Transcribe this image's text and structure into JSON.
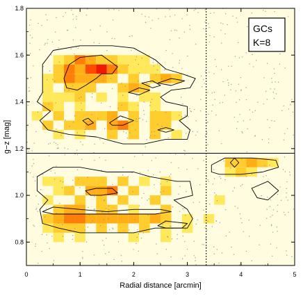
{
  "chart_data": {
    "type": "heatmap",
    "xlabel": "Radial distance [arcmin]",
    "ylabel": "g−z [mag]",
    "xlim": [
      0,
      5
    ],
    "ylim": [
      0.7,
      1.8
    ],
    "x_ticks": [
      0,
      1,
      2,
      3,
      4,
      5
    ],
    "y_ticks": [
      0.8,
      1.0,
      1.2,
      1.4,
      1.6,
      1.8
    ],
    "y_tick_labels": [
      "0.8",
      "1.0",
      "1.2",
      "1.4",
      "1.6",
      "1.8"
    ],
    "legend_box": {
      "lines": [
        "GCs",
        "K=8"
      ],
      "placement": "top-right"
    },
    "reference_lines": [
      {
        "orientation": "horizontal",
        "value": 1.18,
        "style": "solid"
      },
      {
        "orientation": "vertical",
        "value": 3.35,
        "style": "dashed"
      }
    ],
    "density_scale": {
      "0": "#fffce0",
      "1": "#fff59a",
      "2": "#ffe85a",
      "3": "#ffce2e",
      "4": "#ffae16",
      "5": "#ff7e08",
      "6": "#ff4a00",
      "7": "#f01a00"
    },
    "density_bins": {
      "x_bin_width": 0.2,
      "y_bin_width": 0.04,
      "cells": [
        [
          0.6,
          1.58,
          2
        ],
        [
          0.8,
          1.58,
          3
        ],
        [
          1.0,
          1.58,
          5
        ],
        [
          1.2,
          1.58,
          4
        ],
        [
          1.4,
          1.58,
          3
        ],
        [
          1.6,
          1.58,
          3
        ],
        [
          1.8,
          1.58,
          2
        ],
        [
          2.0,
          1.58,
          2
        ],
        [
          2.2,
          1.58,
          2
        ],
        [
          0.6,
          1.54,
          3
        ],
        [
          0.8,
          1.54,
          5
        ],
        [
          1.0,
          1.54,
          4
        ],
        [
          1.2,
          1.54,
          6
        ],
        [
          1.4,
          1.54,
          7
        ],
        [
          1.6,
          1.54,
          5
        ],
        [
          1.8,
          1.54,
          3
        ],
        [
          2.0,
          1.54,
          2
        ],
        [
          2.2,
          1.54,
          2
        ],
        [
          2.4,
          1.54,
          2
        ],
        [
          0.4,
          1.5,
          2
        ],
        [
          0.6,
          1.5,
          3
        ],
        [
          0.8,
          1.5,
          5
        ],
        [
          1.0,
          1.5,
          4
        ],
        [
          1.2,
          1.5,
          4
        ],
        [
          1.4,
          1.5,
          4
        ],
        [
          1.6,
          1.5,
          3
        ],
        [
          2.0,
          1.5,
          3
        ],
        [
          2.4,
          1.5,
          3
        ],
        [
          2.6,
          1.5,
          4
        ],
        [
          2.8,
          1.5,
          3
        ],
        [
          0.4,
          1.46,
          2
        ],
        [
          0.8,
          1.46,
          3
        ],
        [
          1.0,
          1.46,
          3
        ],
        [
          1.2,
          1.46,
          3
        ],
        [
          1.8,
          1.46,
          3
        ],
        [
          2.0,
          1.46,
          4
        ],
        [
          2.2,
          1.46,
          3
        ],
        [
          0.4,
          1.42,
          2
        ],
        [
          0.6,
          1.42,
          2
        ],
        [
          0.8,
          1.42,
          2
        ],
        [
          1.0,
          1.42,
          3
        ],
        [
          1.4,
          1.42,
          2
        ],
        [
          1.8,
          1.42,
          2
        ],
        [
          2.2,
          1.42,
          2
        ],
        [
          2.4,
          1.42,
          2
        ],
        [
          0.4,
          1.38,
          3
        ],
        [
          0.6,
          1.38,
          2
        ],
        [
          1.0,
          1.38,
          2
        ],
        [
          1.8,
          1.38,
          3
        ],
        [
          2.0,
          1.38,
          2
        ],
        [
          2.4,
          1.38,
          2
        ],
        [
          0.2,
          1.34,
          2
        ],
        [
          0.6,
          1.34,
          3
        ],
        [
          1.0,
          1.34,
          3
        ],
        [
          1.2,
          1.34,
          3
        ],
        [
          1.4,
          1.34,
          3
        ],
        [
          1.6,
          1.34,
          4
        ],
        [
          2.0,
          1.34,
          3
        ],
        [
          2.4,
          1.34,
          3
        ],
        [
          2.6,
          1.34,
          3
        ],
        [
          2.8,
          1.34,
          2
        ],
        [
          0.4,
          1.3,
          3
        ],
        [
          0.8,
          1.3,
          3
        ],
        [
          1.0,
          1.3,
          3
        ],
        [
          1.2,
          1.3,
          4
        ],
        [
          1.6,
          1.3,
          4
        ],
        [
          1.8,
          1.3,
          5
        ],
        [
          2.0,
          1.3,
          3
        ],
        [
          2.4,
          1.3,
          3
        ],
        [
          2.6,
          1.3,
          3
        ],
        [
          0.6,
          1.26,
          2
        ],
        [
          1.0,
          1.26,
          2
        ],
        [
          1.6,
          1.26,
          3
        ],
        [
          2.0,
          1.26,
          3
        ],
        [
          2.4,
          1.26,
          3
        ],
        [
          2.8,
          1.26,
          2
        ],
        [
          3.8,
          1.14,
          3
        ],
        [
          4.0,
          1.14,
          3
        ],
        [
          4.2,
          1.14,
          4
        ],
        [
          4.4,
          1.14,
          3
        ],
        [
          4.6,
          1.14,
          2
        ],
        [
          3.8,
          1.1,
          2
        ],
        [
          4.0,
          1.1,
          3
        ],
        [
          4.2,
          1.1,
          2
        ],
        [
          0.4,
          1.06,
          2
        ],
        [
          0.6,
          1.06,
          2
        ],
        [
          1.0,
          1.06,
          3
        ],
        [
          1.2,
          1.06,
          3
        ],
        [
          1.4,
          1.06,
          3
        ],
        [
          1.8,
          1.06,
          3
        ],
        [
          2.2,
          1.06,
          2
        ],
        [
          2.6,
          1.06,
          2
        ],
        [
          0.6,
          1.02,
          2
        ],
        [
          0.8,
          1.02,
          3
        ],
        [
          1.2,
          1.02,
          4
        ],
        [
          1.4,
          1.02,
          4
        ],
        [
          1.6,
          1.02,
          5
        ],
        [
          2.0,
          1.02,
          3
        ],
        [
          2.6,
          1.02,
          3
        ],
        [
          0.4,
          0.98,
          2
        ],
        [
          1.0,
          0.98,
          3
        ],
        [
          1.4,
          0.98,
          3
        ],
        [
          1.8,
          0.98,
          3
        ],
        [
          2.4,
          0.98,
          3
        ],
        [
          3.6,
          0.98,
          2
        ],
        [
          0.6,
          0.94,
          3
        ],
        [
          0.8,
          0.94,
          4
        ],
        [
          1.0,
          0.94,
          4
        ],
        [
          1.4,
          0.94,
          3
        ],
        [
          1.6,
          0.94,
          3
        ],
        [
          2.0,
          0.94,
          2
        ],
        [
          2.6,
          0.94,
          3
        ],
        [
          0.4,
          0.9,
          3
        ],
        [
          0.6,
          0.9,
          4
        ],
        [
          0.8,
          0.9,
          5
        ],
        [
          1.0,
          0.9,
          5
        ],
        [
          1.2,
          0.9,
          4
        ],
        [
          1.4,
          0.9,
          4
        ],
        [
          1.6,
          0.9,
          4
        ],
        [
          1.8,
          0.9,
          4
        ],
        [
          2.0,
          0.9,
          4
        ],
        [
          2.2,
          0.9,
          3
        ],
        [
          2.4,
          0.9,
          4
        ],
        [
          2.6,
          0.9,
          3
        ],
        [
          3.0,
          0.9,
          2
        ],
        [
          3.4,
          0.9,
          2
        ],
        [
          0.4,
          0.86,
          2
        ],
        [
          0.6,
          0.86,
          3
        ],
        [
          0.8,
          0.86,
          3
        ],
        [
          1.0,
          0.86,
          3
        ],
        [
          1.4,
          0.86,
          3
        ],
        [
          1.8,
          0.86,
          3
        ],
        [
          2.2,
          0.86,
          3
        ],
        [
          2.6,
          0.86,
          2
        ],
        [
          3.0,
          0.86,
          2
        ],
        [
          0.6,
          0.82,
          2
        ],
        [
          1.0,
          0.82,
          2
        ],
        [
          2.0,
          0.82,
          2
        ],
        [
          2.6,
          0.82,
          2
        ]
      ]
    },
    "contours": [
      {
        "level": "outer",
        "points": [
          [
            0.3,
            1.44
          ],
          [
            0.3,
            1.56
          ],
          [
            0.5,
            1.62
          ],
          [
            1.0,
            1.64
          ],
          [
            1.6,
            1.64
          ],
          [
            2.0,
            1.63
          ],
          [
            2.4,
            1.58
          ],
          [
            2.6,
            1.54
          ],
          [
            2.9,
            1.52
          ],
          [
            3.15,
            1.5
          ],
          [
            3.05,
            1.46
          ],
          [
            2.7,
            1.45
          ],
          [
            2.5,
            1.42
          ],
          [
            2.6,
            1.4
          ],
          [
            3.0,
            1.38
          ],
          [
            3.0,
            1.34
          ],
          [
            2.85,
            1.32
          ],
          [
            3.05,
            1.28
          ],
          [
            3.0,
            1.24
          ],
          [
            2.6,
            1.24
          ],
          [
            2.2,
            1.22
          ],
          [
            1.8,
            1.22
          ],
          [
            1.3,
            1.25
          ],
          [
            0.8,
            1.26
          ],
          [
            0.4,
            1.28
          ],
          [
            0.25,
            1.32
          ],
          [
            0.45,
            1.36
          ],
          [
            0.2,
            1.4
          ]
        ],
        "closed": true
      },
      {
        "level": "outer",
        "points": [
          [
            0.2,
            1.08
          ],
          [
            0.5,
            1.12
          ],
          [
            1.0,
            1.12
          ],
          [
            1.5,
            1.1
          ],
          [
            2.0,
            1.1
          ],
          [
            2.3,
            1.08
          ],
          [
            2.8,
            1.06
          ],
          [
            3.05,
            1.06
          ],
          [
            3.1,
            1.0
          ],
          [
            2.75,
            0.98
          ],
          [
            3.0,
            0.94
          ],
          [
            3.1,
            0.9
          ],
          [
            3.0,
            0.86
          ],
          [
            2.7,
            0.86
          ],
          [
            2.4,
            0.86
          ],
          [
            2.0,
            0.84
          ],
          [
            1.5,
            0.84
          ],
          [
            1.0,
            0.84
          ],
          [
            0.6,
            0.86
          ],
          [
            0.3,
            0.88
          ],
          [
            0.25,
            0.94
          ],
          [
            0.4,
            0.98
          ],
          [
            0.2,
            1.02
          ]
        ],
        "closed": true
      },
      {
        "level": "outer",
        "points": [
          [
            3.45,
            1.13
          ],
          [
            3.7,
            1.16
          ],
          [
            4.2,
            1.16
          ],
          [
            4.65,
            1.15
          ],
          [
            4.7,
            1.12
          ],
          [
            4.4,
            1.1
          ],
          [
            4.0,
            1.09
          ],
          [
            3.6,
            1.09
          ],
          [
            3.45,
            1.1
          ]
        ],
        "closed": true
      },
      {
        "level": "outer",
        "points": [
          [
            4.2,
            1.03
          ],
          [
            4.5,
            1.06
          ],
          [
            4.7,
            1.02
          ],
          [
            4.5,
            0.98
          ],
          [
            4.3,
            0.99
          ]
        ],
        "closed": true
      },
      {
        "level": "outer",
        "points": [
          [
            2.45,
            0.87
          ],
          [
            2.6,
            0.89
          ],
          [
            3.0,
            0.88
          ],
          [
            2.9,
            0.86
          ],
          [
            2.6,
            0.86
          ]
        ],
        "closed": true
      },
      {
        "level": "outer",
        "points": [
          [
            2.15,
            1.48
          ],
          [
            2.35,
            1.49
          ],
          [
            2.5,
            1.47
          ],
          [
            2.35,
            1.46
          ]
        ],
        "closed": true
      },
      {
        "level": "inner",
        "points": [
          [
            0.7,
            1.5
          ],
          [
            0.8,
            1.56
          ],
          [
            1.0,
            1.59
          ],
          [
            1.4,
            1.6
          ],
          [
            1.7,
            1.55
          ],
          [
            1.6,
            1.52
          ],
          [
            1.4,
            1.52
          ],
          [
            1.3,
            1.5
          ],
          [
            1.1,
            1.47
          ],
          [
            0.95,
            1.45
          ],
          [
            0.75,
            1.46
          ]
        ],
        "closed": true
      },
      {
        "level": "inner",
        "points": [
          [
            1.9,
            1.44
          ],
          [
            2.1,
            1.46
          ],
          [
            2.3,
            1.45
          ],
          [
            2.1,
            1.43
          ]
        ],
        "closed": true
      },
      {
        "level": "inner",
        "points": [
          [
            2.45,
            1.48
          ],
          [
            2.7,
            1.5
          ],
          [
            2.95,
            1.49
          ],
          [
            2.7,
            1.47
          ]
        ],
        "closed": true
      },
      {
        "level": "inner",
        "points": [
          [
            1.05,
            1.32
          ],
          [
            1.15,
            1.33
          ],
          [
            1.25,
            1.31
          ],
          [
            1.15,
            1.3
          ]
        ],
        "closed": true
      },
      {
        "level": "inner",
        "points": [
          [
            1.55,
            1.31
          ],
          [
            1.75,
            1.34
          ],
          [
            2.0,
            1.32
          ],
          [
            1.8,
            1.3
          ],
          [
            1.6,
            1.3
          ]
        ],
        "closed": true
      },
      {
        "level": "inner",
        "points": [
          [
            2.45,
            1.28
          ],
          [
            2.6,
            1.29
          ],
          [
            2.75,
            1.28
          ],
          [
            2.6,
            1.27
          ]
        ],
        "closed": true
      },
      {
        "level": "inner",
        "points": [
          [
            3.8,
            1.14
          ],
          [
            3.88,
            1.16
          ],
          [
            3.96,
            1.14
          ],
          [
            3.88,
            1.12
          ]
        ],
        "closed": true
      },
      {
        "level": "inner",
        "points": [
          [
            1.1,
            1.02
          ],
          [
            1.3,
            1.03
          ],
          [
            1.6,
            1.03
          ],
          [
            1.7,
            1.01
          ],
          [
            1.4,
            1.0
          ],
          [
            1.2,
            1.0
          ]
        ],
        "closed": true
      },
      {
        "level": "inner",
        "points": [
          [
            0.3,
            0.93
          ],
          [
            0.5,
            0.95
          ],
          [
            1.0,
            0.94
          ],
          [
            1.5,
            0.93
          ],
          [
            2.0,
            0.94
          ],
          [
            2.5,
            0.94
          ],
          [
            2.7,
            0.93
          ],
          [
            2.4,
            0.92
          ],
          [
            2.0,
            0.92
          ],
          [
            1.5,
            0.92
          ],
          [
            1.0,
            0.92
          ],
          [
            0.5,
            0.92
          ]
        ],
        "closed": true
      }
    ]
  }
}
